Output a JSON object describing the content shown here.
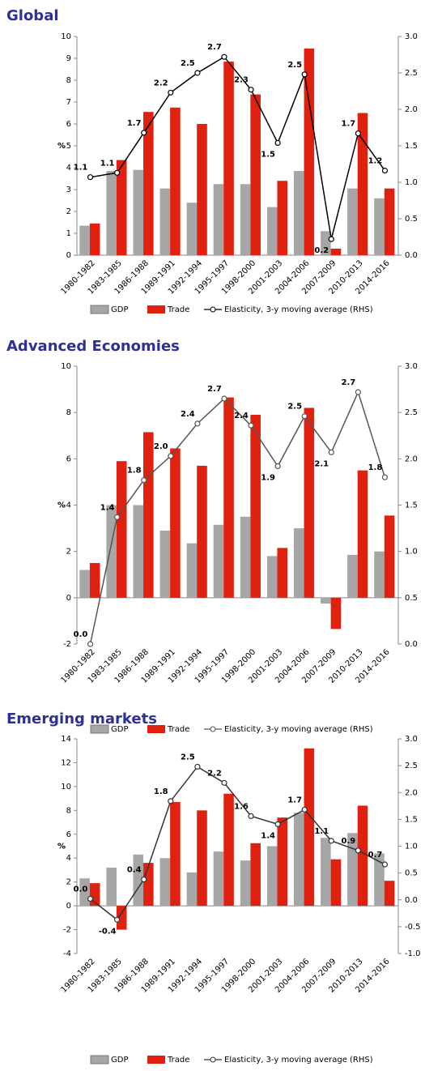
{
  "chart_data": [
    {
      "type": "combo",
      "title": "Global",
      "ylabel": "%",
      "categories": [
        "1980-1982",
        "1983-1985",
        "1986-1988",
        "1989-1991",
        "1992-1994",
        "1995-1997",
        "1998-2000",
        "2001-2003",
        "2004-2006",
        "2007-2009",
        "2010-2013",
        "2014-2016"
      ],
      "series": [
        {
          "name": "GDP",
          "type": "bar",
          "color": "#a6a6a6",
          "values": [
            1.35,
            3.85,
            3.9,
            3.05,
            2.4,
            3.25,
            3.25,
            2.2,
            3.85,
            1.1,
            3.05,
            2.6
          ]
        },
        {
          "name": "Trade",
          "type": "bar",
          "color": "#e0210f",
          "values": [
            1.45,
            4.35,
            6.55,
            6.75,
            6.0,
            8.85,
            7.35,
            3.4,
            9.45,
            0.3,
            6.5,
            3.05
          ]
        },
        {
          "name": "Elasticity, 3-y moving average (RHS)",
          "type": "line",
          "axis": "y2",
          "color": "#000000",
          "values": [
            1.07,
            1.13,
            1.68,
            2.23,
            2.5,
            2.72,
            2.27,
            1.54,
            2.48,
            0.22,
            1.67,
            1.16
          ],
          "value_labels": [
            "1.1",
            "1.1",
            "1.7",
            "2.2",
            "2.5",
            "2.7",
            "2.3",
            "1.5",
            "2.5",
            "0.2",
            "1.7",
            "1.2"
          ]
        }
      ],
      "ylim": [
        0,
        10
      ],
      "yticks": [
        0,
        1,
        2,
        3,
        4,
        5,
        6,
        7,
        8,
        9,
        10
      ],
      "y2lim": [
        0,
        3
      ],
      "y2ticks": [
        {
          "value": 0,
          "label": "0.0"
        },
        {
          "value": 0.5,
          "label": "0.5"
        },
        {
          "value": 1,
          "label": "1.0"
        },
        {
          "value": 1.5,
          "label": "1.5"
        },
        {
          "value": 2,
          "label": "2.0"
        },
        {
          "value": 2.5,
          "label": "2.5"
        },
        {
          "value": 3,
          "label": "3.0"
        }
      ]
    },
    {
      "type": "combo",
      "title": "Advanced Economies",
      "ylabel": "%",
      "categories": [
        "1980-1982",
        "1983-1985",
        "1986-1988",
        "1989-1991",
        "1992-1994",
        "1995-1997",
        "1998-2000",
        "2001-2003",
        "2004-2006",
        "2007-2009",
        "2010-2013",
        "2014-2016"
      ],
      "series": [
        {
          "name": "GDP",
          "type": "bar",
          "color": "#a6a6a6",
          "values": [
            1.2,
            4.0,
            4.0,
            2.9,
            2.35,
            3.15,
            3.5,
            1.8,
            3.0,
            -0.25,
            1.85,
            2.0
          ]
        },
        {
          "name": "Trade",
          "type": "bar",
          "color": "#e0210f",
          "values": [
            1.5,
            5.9,
            7.15,
            6.45,
            5.7,
            8.65,
            7.9,
            2.15,
            8.2,
            -1.35,
            5.5,
            3.55
          ]
        },
        {
          "name": "Elasticity, 3-y moving average (RHS)",
          "type": "line",
          "axis": "y2",
          "color": "#555555",
          "values": [
            0.0,
            1.37,
            1.77,
            2.03,
            2.38,
            2.65,
            2.36,
            1.92,
            2.46,
            2.07,
            2.72,
            1.8
          ],
          "value_labels": [
            "0.0",
            "1.4",
            "1.8",
            "2.0",
            "2.4",
            "2.7",
            "2.4",
            "1.9",
            "2.5",
            "2.1",
            "2.7",
            "1.8"
          ]
        }
      ],
      "ylim": [
        -2,
        10
      ],
      "yticks": [
        -2,
        0,
        2,
        4,
        6,
        8,
        10
      ],
      "y2lim": [
        0,
        3
      ],
      "y2ticks": [
        {
          "value": 0,
          "label": "0.0"
        },
        {
          "value": 0.5,
          "label": "0.5"
        },
        {
          "value": 1,
          "label": "1.0"
        },
        {
          "value": 1.5,
          "label": "1.5"
        },
        {
          "value": 2,
          "label": "2.0"
        },
        {
          "value": 2.5,
          "label": "2.5"
        },
        {
          "value": 3,
          "label": "3.0"
        }
      ]
    },
    {
      "type": "combo",
      "title": "Emerging markets",
      "ylabel": "%",
      "categories": [
        "1980-1982",
        "1983-1985",
        "1986-1988",
        "1989-1991",
        "1992-1994",
        "1995-1997",
        "1998-2000",
        "2001-2003",
        "2004-2006",
        "2007-2009",
        "2010-2013",
        "2014-2016"
      ],
      "series": [
        {
          "name": "GDP",
          "type": "bar",
          "color": "#a6a6a6",
          "values": [
            2.3,
            3.2,
            4.3,
            4.0,
            2.8,
            4.55,
            3.8,
            5.0,
            7.8,
            5.7,
            6.1,
            4.4
          ]
        },
        {
          "name": "Trade",
          "type": "bar",
          "color": "#e0210f",
          "values": [
            1.9,
            -2.0,
            3.6,
            8.7,
            8.0,
            9.4,
            5.25,
            7.4,
            13.2,
            3.9,
            8.4,
            2.1
          ]
        },
        {
          "name": "Elasticity, 3-y moving average (RHS)",
          "type": "line",
          "axis": "y2",
          "color": "#333333",
          "values": [
            0.02,
            -0.37,
            0.38,
            1.84,
            2.48,
            2.18,
            1.56,
            1.41,
            1.68,
            1.1,
            0.92,
            0.66
          ],
          "value_labels": [
            "0.0",
            "-0.4",
            "0.4",
            "1.8",
            "2.5",
            "2.2",
            "1.6",
            "1.4",
            "1.7",
            "1.1",
            "0.9",
            "0.7"
          ]
        }
      ],
      "ylim": [
        -4,
        14
      ],
      "yticks": [
        -4,
        -2,
        0,
        2,
        4,
        6,
        8,
        10,
        12,
        14
      ],
      "y2lim": [
        -1,
        3
      ],
      "y2ticks": [
        {
          "value": -1,
          "label": "-1.0"
        },
        {
          "value": -0.5,
          "label": "-0.5"
        },
        {
          "value": 0,
          "label": "0.0"
        },
        {
          "value": 0.5,
          "label": "0.5"
        },
        {
          "value": 1,
          "label": "1.0"
        },
        {
          "value": 1.5,
          "label": "1.5"
        },
        {
          "value": 2,
          "label": "2.0"
        },
        {
          "value": 2.5,
          "label": "2.5"
        },
        {
          "value": 3,
          "label": "3.0"
        }
      ]
    }
  ]
}
